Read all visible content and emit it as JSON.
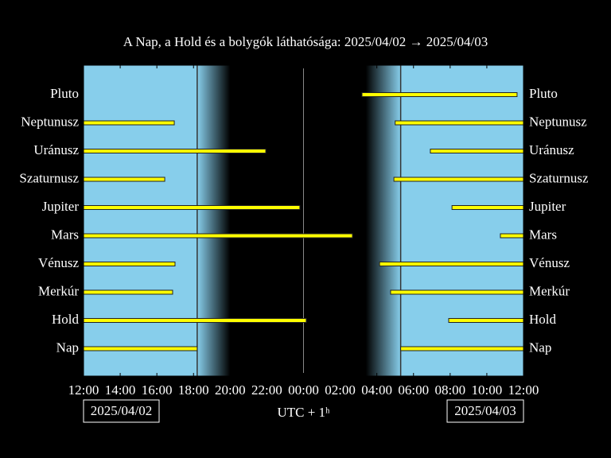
{
  "chart_data": {
    "type": "visibility",
    "title": "A Nap, a Hold és a bolygók láthatósága: 2025/04/02 → 2025/04/03",
    "xlabel": "UTC + 1ʰ",
    "date_start": "2025/04/02",
    "date_end": "2025/04/03",
    "xlim": [
      12,
      36
    ],
    "xticks": [
      {
        "value": 12,
        "label": "12:00"
      },
      {
        "value": 14,
        "label": "14:00"
      },
      {
        "value": 16,
        "label": "16:00"
      },
      {
        "value": 18,
        "label": "18:00"
      },
      {
        "value": 20,
        "label": "20:00"
      },
      {
        "value": 22,
        "label": "22:00"
      },
      {
        "value": 24,
        "label": "00:00"
      },
      {
        "value": 26,
        "label": "02:00"
      },
      {
        "value": 28,
        "label": "04:00"
      },
      {
        "value": 30,
        "label": "06:00"
      },
      {
        "value": 32,
        "label": "08:00"
      },
      {
        "value": 34,
        "label": "10:00"
      },
      {
        "value": 36,
        "label": "12:00"
      }
    ],
    "sky": {
      "sunset": 18.2,
      "dark_start": 20.0,
      "dark_end": 27.4,
      "sunrise": 29.3,
      "midnight": 24,
      "day_color": "#87ceeb",
      "night_color": "#000000"
    },
    "bar_color": "#ffff00",
    "series": [
      {
        "name": "Pluto",
        "intervals": [
          [
            27.19,
            35.65
          ]
        ]
      },
      {
        "name": "Neptunusz",
        "intervals": [
          [
            12,
            16.95
          ],
          [
            29.0,
            36
          ]
        ]
      },
      {
        "name": "Uránusz",
        "intervals": [
          [
            12,
            21.94
          ],
          [
            30.92,
            36
          ]
        ]
      },
      {
        "name": "Szaturnusz",
        "intervals": [
          [
            12,
            16.43
          ],
          [
            28.93,
            36
          ]
        ]
      },
      {
        "name": "Jupiter",
        "intervals": [
          [
            12,
            23.8
          ],
          [
            32.1,
            36
          ]
        ]
      },
      {
        "name": "Mars",
        "intervals": [
          [
            12,
            26.67
          ],
          [
            34.74,
            36
          ]
        ]
      },
      {
        "name": "Vénusz",
        "intervals": [
          [
            12,
            16.99
          ],
          [
            28.15,
            36
          ]
        ]
      },
      {
        "name": "Merkúr",
        "intervals": [
          [
            12,
            16.86
          ],
          [
            28.75,
            36
          ]
        ]
      },
      {
        "name": "Hold",
        "intervals": [
          [
            12,
            24.15
          ],
          [
            31.92,
            36
          ]
        ]
      },
      {
        "name": "Nap",
        "intervals": [
          [
            12,
            18.2
          ],
          [
            29.3,
            36
          ]
        ]
      }
    ]
  }
}
